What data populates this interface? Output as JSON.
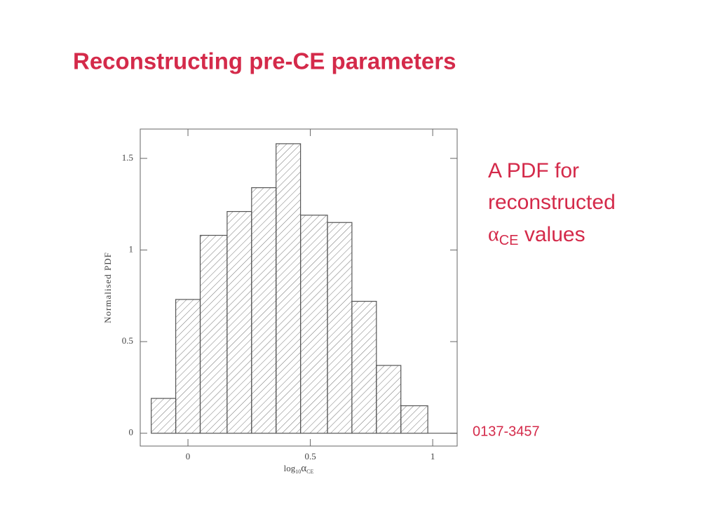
{
  "title": "Reconstructing pre-CE parameters",
  "chart_data": {
    "type": "histogram",
    "bins": [
      -0.15,
      -0.05,
      0.05,
      0.16,
      0.26,
      0.36,
      0.46,
      0.57,
      0.67,
      0.77,
      0.87,
      0.98
    ],
    "values": [
      0.19,
      0.73,
      1.08,
      1.21,
      1.34,
      1.58,
      1.19,
      1.15,
      0.72,
      0.37,
      0.15
    ],
    "xlim": [
      -0.195,
      1.1
    ],
    "ylim": [
      -0.07,
      1.66
    ],
    "xticks": [
      0,
      0.5,
      1
    ],
    "yticks": [
      0,
      0.5,
      1,
      1.5
    ],
    "y_label": "Normalised PDF",
    "x_label": [
      "log",
      "10",
      "α",
      "CE"
    ],
    "color": "#555555",
    "hatch": true
  },
  "annotation": {
    "lines": [
      "A PDF for",
      "reconstructed"
    ],
    "symbol": "α",
    "symbol_sub": "CE",
    "tail": " values"
  },
  "source_label": "0137-3457"
}
